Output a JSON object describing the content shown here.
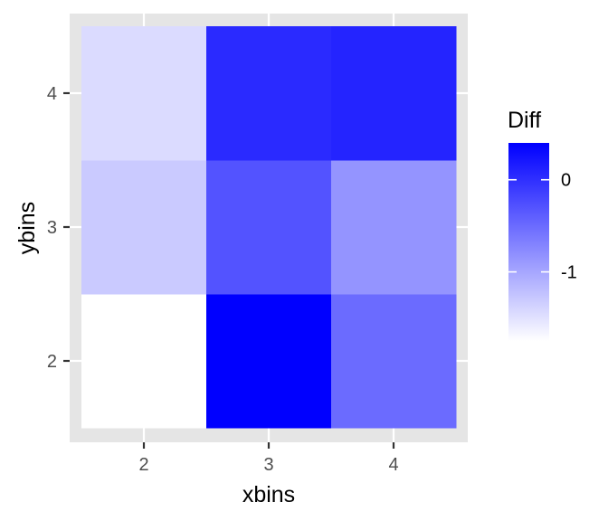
{
  "chart_data": {
    "type": "heatmap",
    "xlabel": "xbins",
    "ylabel": "ybins",
    "x_categories": [
      "2",
      "3",
      "4"
    ],
    "y_categories": [
      "2",
      "3",
      "4"
    ],
    "cells": [
      {
        "x": "2",
        "y": "2",
        "value": -1.75
      },
      {
        "x": "3",
        "y": "2",
        "value": 0.4
      },
      {
        "x": "4",
        "y": "2",
        "value": -0.5
      },
      {
        "x": "2",
        "y": "3",
        "value": -1.3
      },
      {
        "x": "3",
        "y": "3",
        "value": -0.3
      },
      {
        "x": "4",
        "y": "3",
        "value": -0.85
      },
      {
        "x": "2",
        "y": "4",
        "value": -1.45
      },
      {
        "x": "3",
        "y": "4",
        "value": 0.05
      },
      {
        "x": "4",
        "y": "4",
        "value": 0.1
      }
    ],
    "legend": {
      "title": "Diff",
      "breaks": [
        0,
        -1
      ],
      "labels": [
        "0",
        "-1"
      ],
      "limits": [
        -1.75,
        0.4
      ],
      "position": "right"
    },
    "colors": {
      "low": "#ffffff",
      "high": "#0000ff",
      "panel_background": "#e5e5e5",
      "grid": "#ffffff"
    },
    "grid": true
  }
}
